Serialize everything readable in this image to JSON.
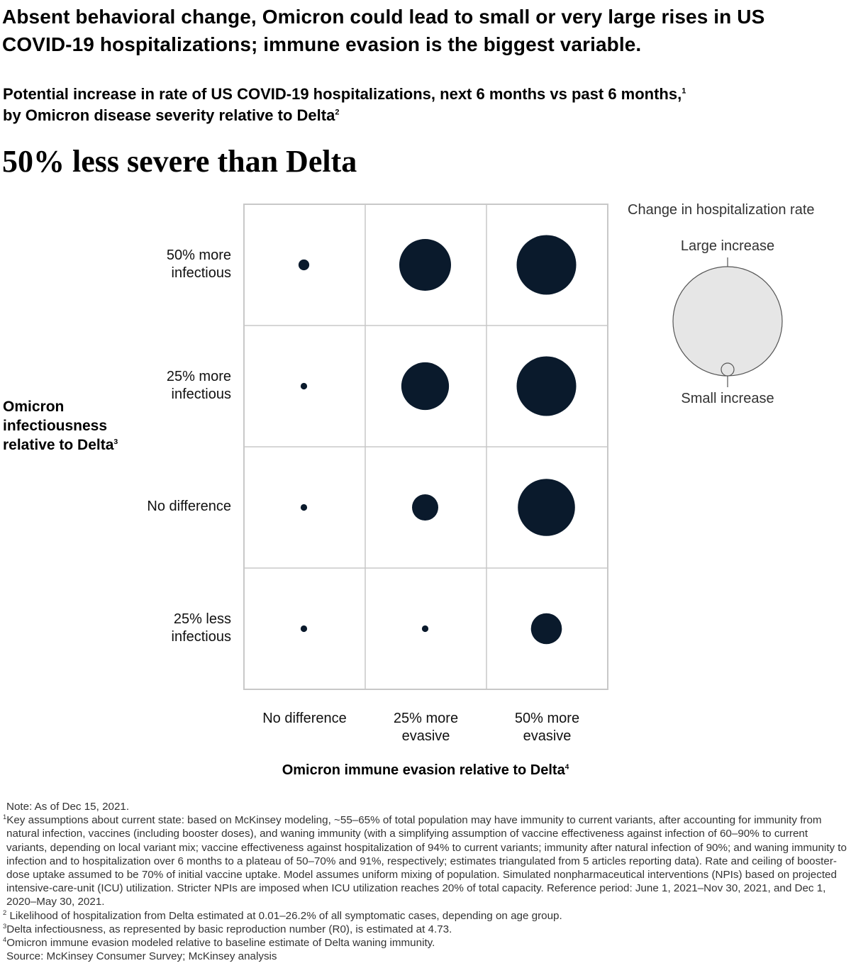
{
  "headline": "Absent behavioral change, Omicron could lead to small or very large rises in US COVID-19 hospitalizations; immune evasion is the biggest variable.",
  "subtitle": {
    "line1": "Potential increase in rate of US COVID-19 hospitalizations, next 6 months vs past 6 months,",
    "line1_sup": "1",
    "line2": "by Omicron disease severity relative to Delta",
    "line2_sup": "2"
  },
  "chart_data": {
    "type": "bubble-matrix",
    "title": "50% less severe than Delta",
    "xlabel": "Omicron immune evasion relative to Delta",
    "xlabel_sup": "4",
    "ylabel": "Omicron infectiousness relative to Delta",
    "ylabel_sup": "3",
    "columns": [
      "No difference",
      "25% more evasive",
      "50% more evasive"
    ],
    "rows": [
      "50% more infectious",
      "25% more infectious",
      "No difference",
      "25% less infectious"
    ],
    "values_relative_size": [
      [
        0.18,
        0.87,
        1.0
      ],
      [
        0.11,
        0.8,
        1.0
      ],
      [
        0.11,
        0.44,
        0.96
      ],
      [
        0.11,
        0.11,
        0.52
      ]
    ],
    "bubble_color": "#0a1a2c",
    "grid_color": "#c8c8c8",
    "legend": {
      "title": "Change in hospitalization rate",
      "large_label": "Large increase",
      "small_label": "Small increase",
      "fill": "#e6e6e6"
    }
  },
  "notes": {
    "note": "Note: As of Dec 15, 2021.",
    "footnotes": [
      {
        "sup": "1",
        "text": "Key assumptions about current state: based on McKinsey modeling, ~55–65% of total population may have immunity to current variants, after accounting for immunity from natural infection, vaccines (including booster doses), and waning immunity (with a simplifying assumption of vaccine effectiveness against infection of 60–90% to current variants, depending on local variant mix; vaccine effectiveness against hospitalization of 94% to current variants; immunity after natural infection of 90%; and waning immunity to infection and to hospitalization over 6 months to a plateau of 50–70% and 91%, respectively; estimates triangulated from 5 articles reporting data). Rate and ceiling of booster-dose uptake assumed to be 70% of initial vaccine uptake. Model assumes uniform mixing of population. Simulated nonpharmaceutical interventions (NPIs) based on projected intensive-care-unit (ICU) utilization. Stricter NPIs are imposed when ICU utilization reaches 20% of total capacity. Reference period: June 1, 2021–Nov 30, 2021, and Dec 1, 2020–May 30, 2021."
      },
      {
        "sup": "2",
        "text": " Likelihood of hospitalization from Delta estimated at 0.01–26.2% of all symptomatic cases, depending on age group."
      },
      {
        "sup": "3",
        "text": "Delta infectiousness, as represented by basic reproduction number (R0), is estimated at 4.73."
      },
      {
        "sup": "4",
        "text": "Omicron immune evasion modeled relative to baseline estimate of Delta waning immunity."
      }
    ],
    "source": "Source: McKinsey Consumer Survey; McKinsey analysis"
  }
}
